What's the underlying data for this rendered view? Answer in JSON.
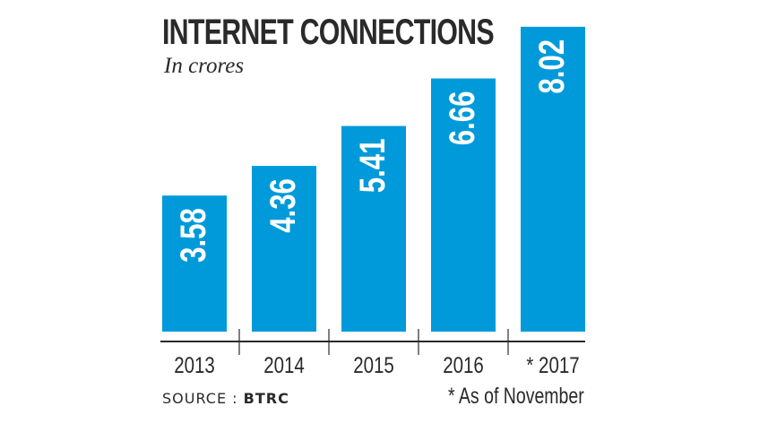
{
  "chart_data": {
    "type": "bar",
    "title": "INTERNET CONNECTIONS",
    "subtitle": "In crores",
    "categories": [
      "2013",
      "2014",
      "2015",
      "2016",
      "* 2017"
    ],
    "values": [
      3.58,
      4.36,
      5.41,
      6.66,
      8.02
    ],
    "value_labels": [
      "3.58",
      "4.36",
      "5.41",
      "6.66",
      "8.02"
    ],
    "xlabel": "",
    "ylabel": "",
    "ylim": [
      0,
      8.3
    ],
    "grid": false,
    "data_label_placement": "inside-top-rotated",
    "bar_color": "#009ada",
    "label_color": "#ffffff",
    "axis_color": "#2a2a2a"
  },
  "source": {
    "label": "SOURCE :",
    "value": "BTRC"
  },
  "footnote": "* As of November"
}
